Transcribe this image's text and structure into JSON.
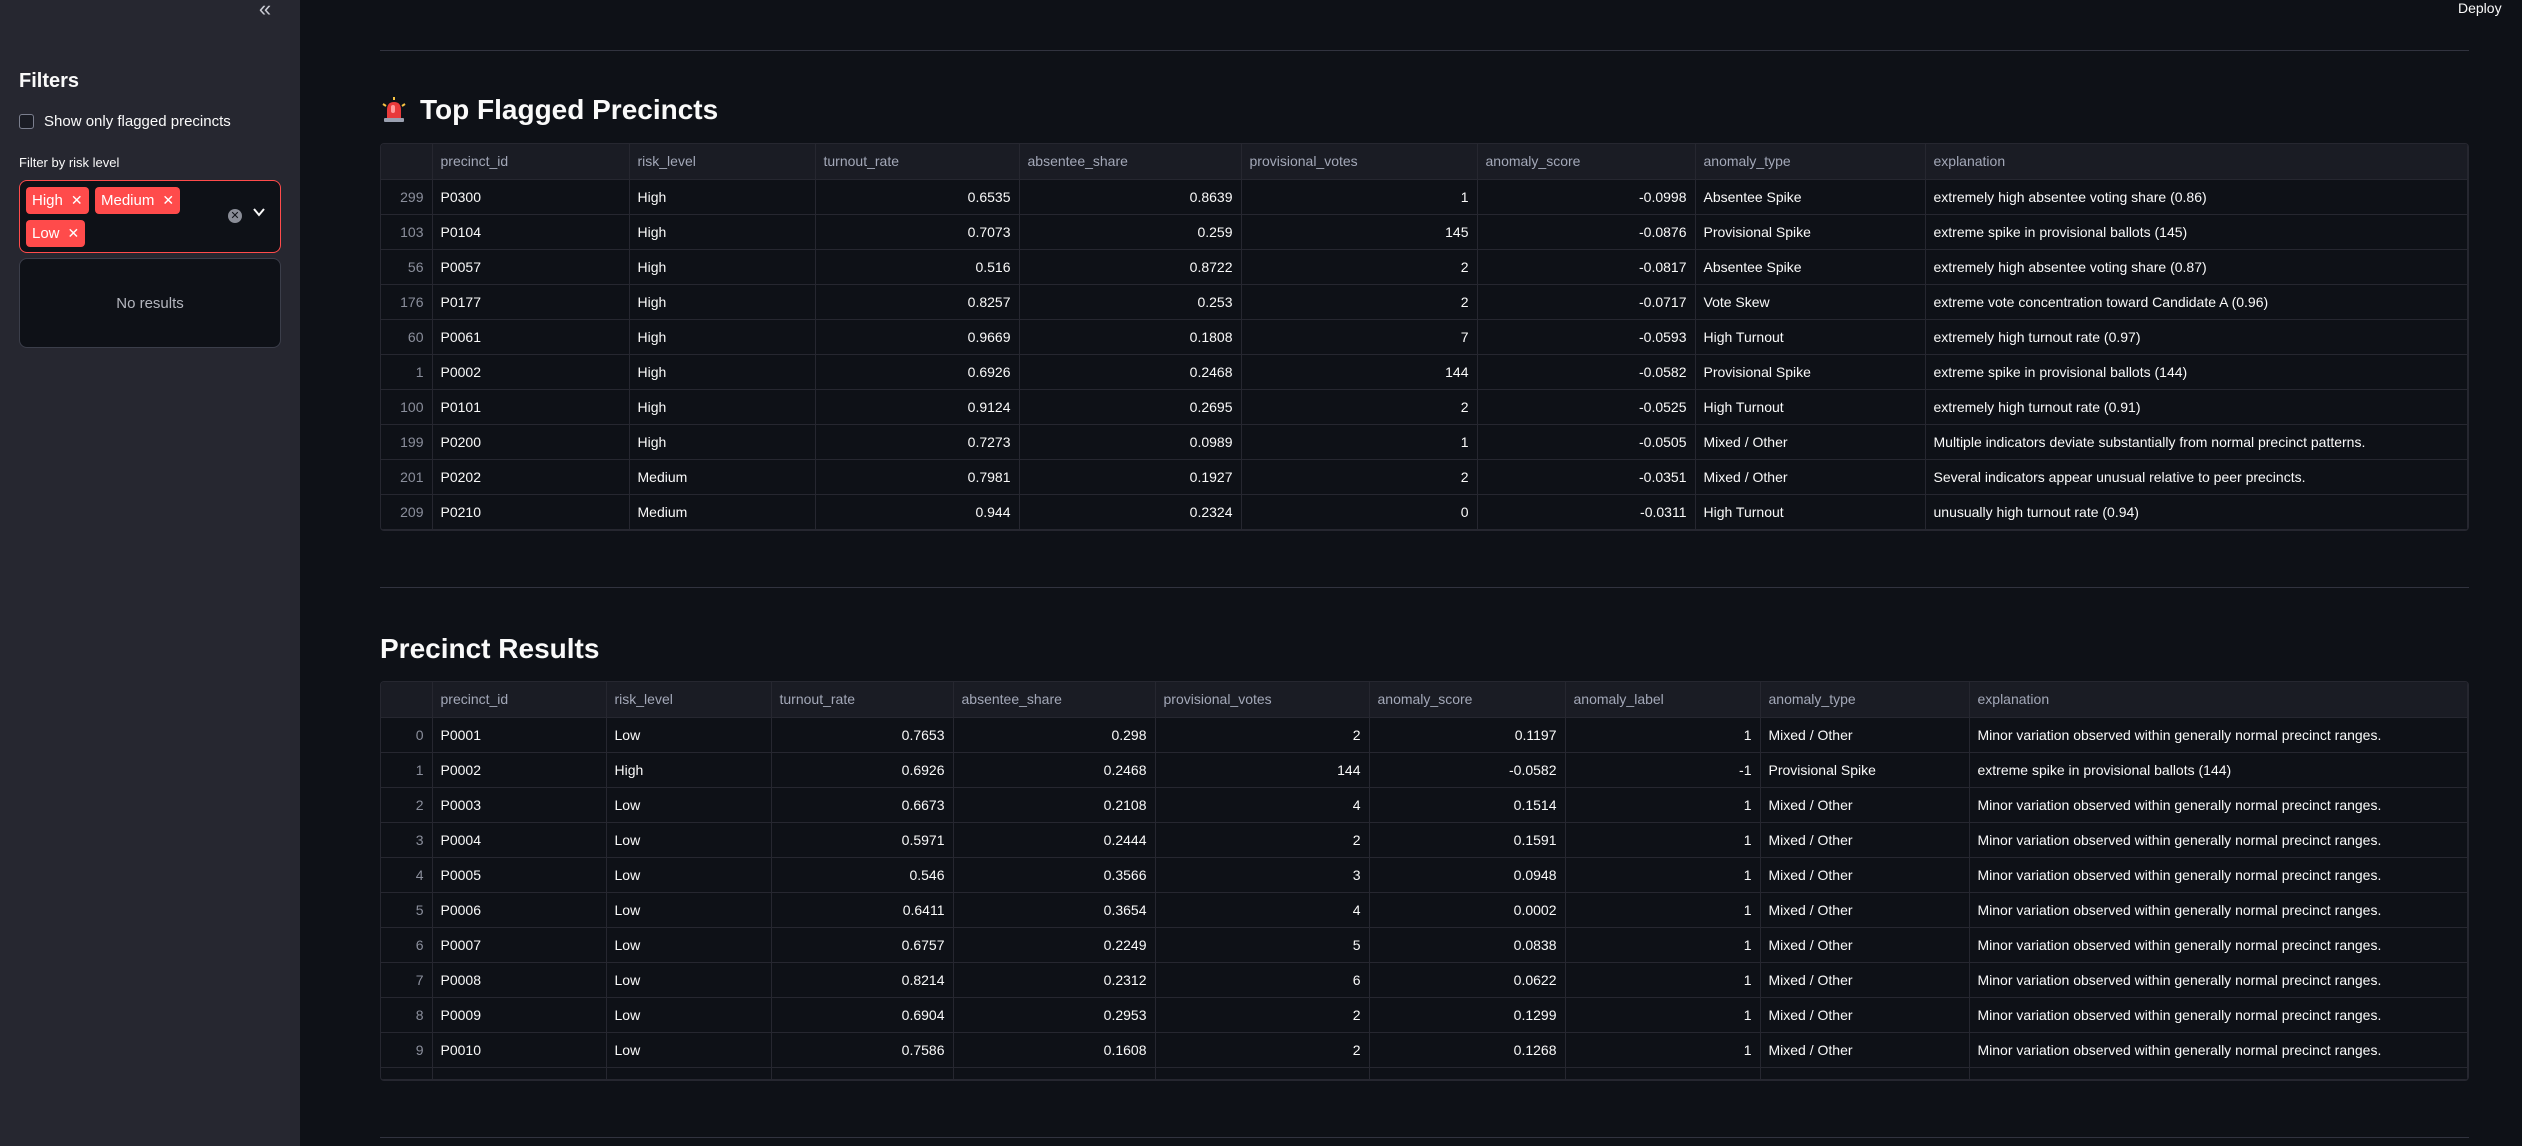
{
  "sidebar": {
    "collapse_glyph": "«",
    "title": "Filters",
    "checkbox_label": "Show only flagged precincts",
    "filter_label": "Filter by risk level",
    "chips": [
      "High",
      "Medium",
      "Low"
    ],
    "no_results": "No results"
  },
  "header": {
    "deploy_label": "Deploy"
  },
  "flagged": {
    "title": "Top Flagged Precincts",
    "icon": "siren-icon",
    "columns": [
      "",
      "precinct_id",
      "risk_level",
      "turnout_rate",
      "absentee_share",
      "provisional_votes",
      "anomaly_score",
      "anomaly_type",
      "explanation"
    ],
    "rows": [
      [
        "299",
        "P0300",
        "High",
        "0.6535",
        "0.8639",
        "1",
        "-0.0998",
        "Absentee Spike",
        "extremely high absentee voting share (0.86)"
      ],
      [
        "103",
        "P0104",
        "High",
        "0.7073",
        "0.259",
        "145",
        "-0.0876",
        "Provisional Spike",
        "extreme spike in provisional ballots (145)"
      ],
      [
        "56",
        "P0057",
        "High",
        "0.516",
        "0.8722",
        "2",
        "-0.0817",
        "Absentee Spike",
        "extremely high absentee voting share (0.87)"
      ],
      [
        "176",
        "P0177",
        "High",
        "0.8257",
        "0.253",
        "2",
        "-0.0717",
        "Vote Skew",
        "extreme vote concentration toward Candidate A (0.96)"
      ],
      [
        "60",
        "P0061",
        "High",
        "0.9669",
        "0.1808",
        "7",
        "-0.0593",
        "High Turnout",
        "extremely high turnout rate (0.97)"
      ],
      [
        "1",
        "P0002",
        "High",
        "0.6926",
        "0.2468",
        "144",
        "-0.0582",
        "Provisional Spike",
        "extreme spike in provisional ballots (144)"
      ],
      [
        "100",
        "P0101",
        "High",
        "0.9124",
        "0.2695",
        "2",
        "-0.0525",
        "High Turnout",
        "extremely high turnout rate (0.91)"
      ],
      [
        "199",
        "P0200",
        "High",
        "0.7273",
        "0.0989",
        "1",
        "-0.0505",
        "Mixed / Other",
        "Multiple indicators deviate substantially from normal precinct patterns."
      ],
      [
        "201",
        "P0202",
        "Medium",
        "0.7981",
        "0.1927",
        "2",
        "-0.0351",
        "Mixed / Other",
        "Several indicators appear unusual relative to peer precincts."
      ],
      [
        "209",
        "P0210",
        "Medium",
        "0.944",
        "0.2324",
        "0",
        "-0.0311",
        "High Turnout",
        "unusually high turnout rate (0.94)"
      ]
    ]
  },
  "results": {
    "title": "Precinct Results",
    "columns": [
      "",
      "precinct_id",
      "risk_level",
      "turnout_rate",
      "absentee_share",
      "provisional_votes",
      "anomaly_score",
      "anomaly_label",
      "anomaly_type",
      "explanation"
    ],
    "rows": [
      [
        "0",
        "P0001",
        "Low",
        "0.7653",
        "0.298",
        "2",
        "0.1197",
        "1",
        "Mixed / Other",
        "Minor variation observed within generally normal precinct ranges."
      ],
      [
        "1",
        "P0002",
        "High",
        "0.6926",
        "0.2468",
        "144",
        "-0.0582",
        "-1",
        "Provisional Spike",
        "extreme spike in provisional ballots (144)"
      ],
      [
        "2",
        "P0003",
        "Low",
        "0.6673",
        "0.2108",
        "4",
        "0.1514",
        "1",
        "Mixed / Other",
        "Minor variation observed within generally normal precinct ranges."
      ],
      [
        "3",
        "P0004",
        "Low",
        "0.5971",
        "0.2444",
        "2",
        "0.1591",
        "1",
        "Mixed / Other",
        "Minor variation observed within generally normal precinct ranges."
      ],
      [
        "4",
        "P0005",
        "Low",
        "0.546",
        "0.3566",
        "3",
        "0.0948",
        "1",
        "Mixed / Other",
        "Minor variation observed within generally normal precinct ranges."
      ],
      [
        "5",
        "P0006",
        "Low",
        "0.6411",
        "0.3654",
        "4",
        "0.0002",
        "1",
        "Mixed / Other",
        "Minor variation observed within generally normal precinct ranges."
      ],
      [
        "6",
        "P0007",
        "Low",
        "0.6757",
        "0.2249",
        "5",
        "0.0838",
        "1",
        "Mixed / Other",
        "Minor variation observed within generally normal precinct ranges."
      ],
      [
        "7",
        "P0008",
        "Low",
        "0.8214",
        "0.2312",
        "6",
        "0.0622",
        "1",
        "Mixed / Other",
        "Minor variation observed within generally normal precinct ranges."
      ],
      [
        "8",
        "P0009",
        "Low",
        "0.6904",
        "0.2953",
        "2",
        "0.1299",
        "1",
        "Mixed / Other",
        "Minor variation observed within generally normal precinct ranges."
      ],
      [
        "9",
        "P0010",
        "Low",
        "0.7586",
        "0.1608",
        "2",
        "0.1268",
        "1",
        "Mixed / Other",
        "Minor variation observed within generally normal precinct ranges."
      ]
    ]
  },
  "colors": {
    "accent": "#ff4b4b",
    "sidebar_bg": "#262730",
    "main_bg": "#0e1117"
  }
}
